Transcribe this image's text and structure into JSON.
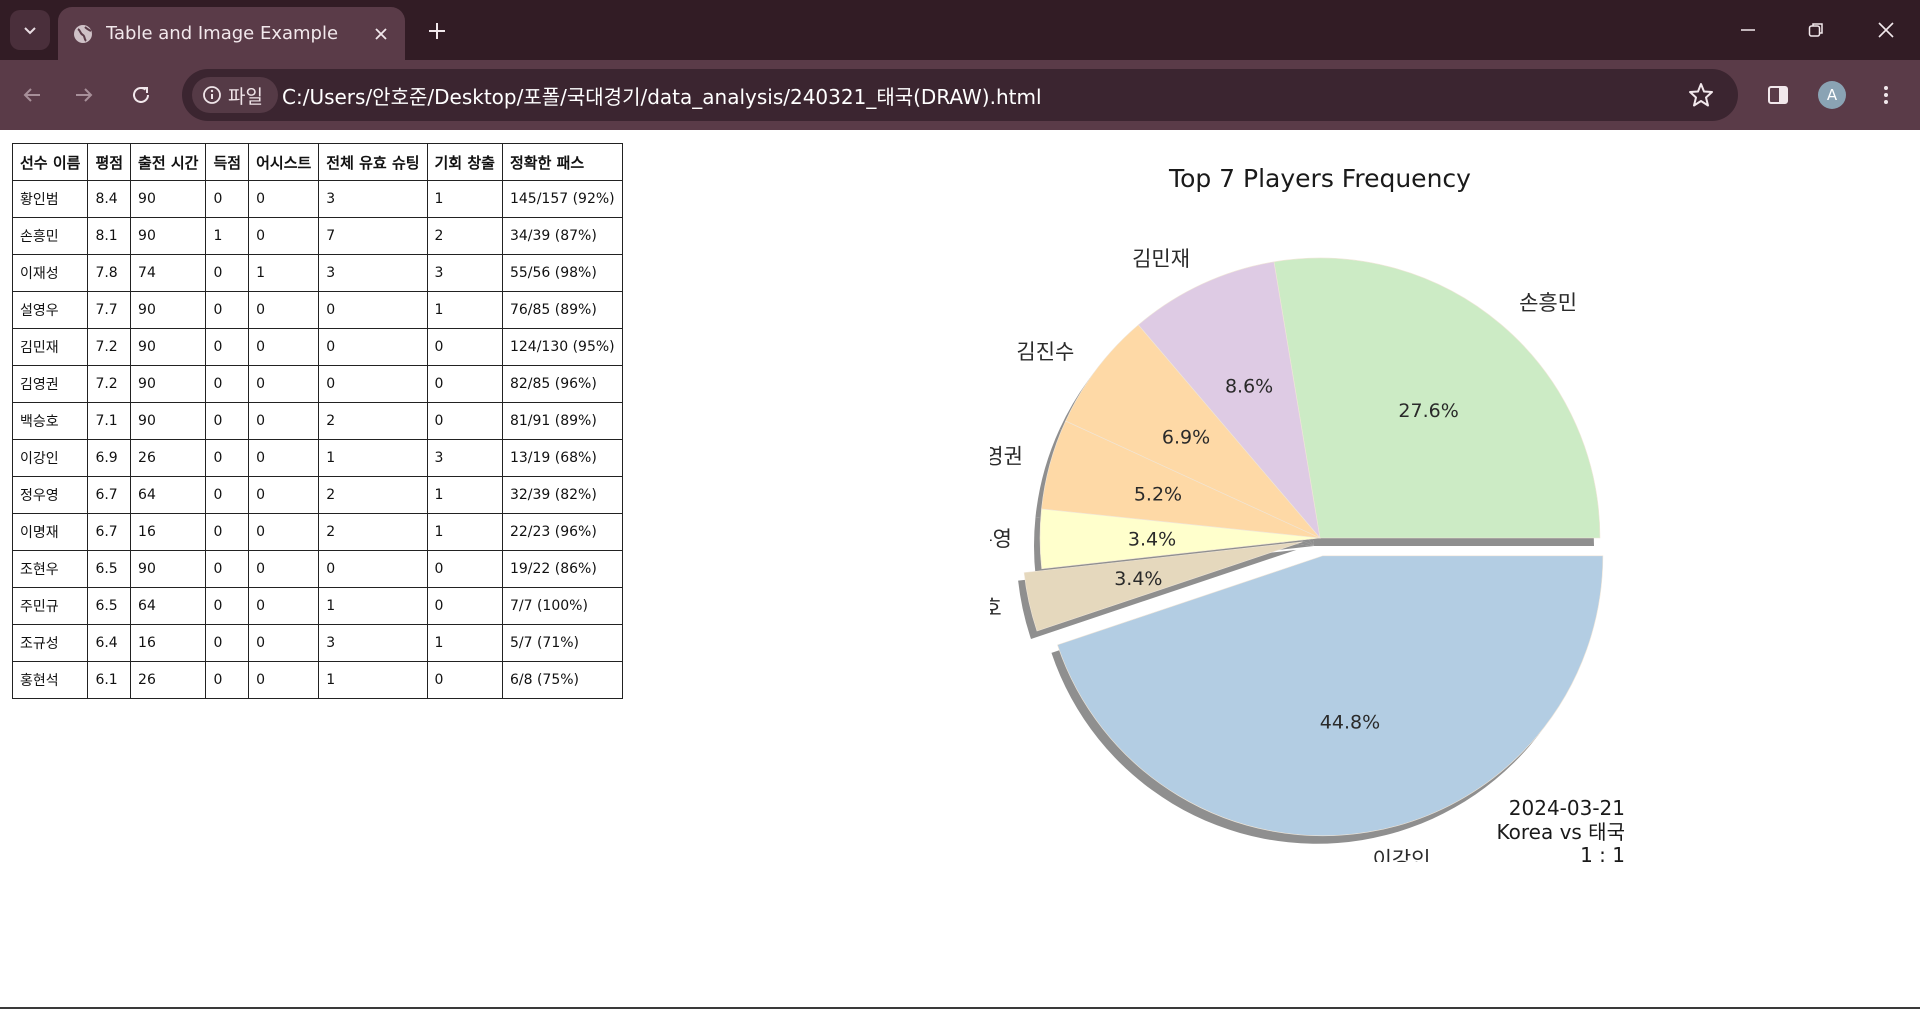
{
  "browser": {
    "tab_title": "Table and Image Example",
    "site_chip_label": "파일",
    "url": "C:/Users/안호준/Desktop/포폴/국대경기/data_analysis/240321_태국(DRAW).html",
    "profile_initial": "A"
  },
  "table": {
    "headers": [
      "선수 이름",
      "평점",
      "출전 시간",
      "득점",
      "어시스트",
      "전체 유효 슈팅",
      "기회 창출",
      "정확한 패스"
    ],
    "rows": [
      [
        "황인범",
        "8.4",
        "90",
        "0",
        "0",
        "3",
        "1",
        "145/157 (92%)"
      ],
      [
        "손흥민",
        "8.1",
        "90",
        "1",
        "0",
        "7",
        "2",
        "34/39 (87%)"
      ],
      [
        "이재성",
        "7.8",
        "74",
        "0",
        "1",
        "3",
        "3",
        "55/56 (98%)"
      ],
      [
        "설영우",
        "7.7",
        "90",
        "0",
        "0",
        "0",
        "1",
        "76/85 (89%)"
      ],
      [
        "김민재",
        "7.2",
        "90",
        "0",
        "0",
        "0",
        "0",
        "124/130 (95%)"
      ],
      [
        "김영권",
        "7.2",
        "90",
        "0",
        "0",
        "0",
        "0",
        "82/85 (96%)"
      ],
      [
        "백승호",
        "7.1",
        "90",
        "0",
        "0",
        "2",
        "0",
        "81/91 (89%)"
      ],
      [
        "이강인",
        "6.9",
        "26",
        "0",
        "0",
        "1",
        "3",
        "13/19 (68%)"
      ],
      [
        "정우영",
        "6.7",
        "64",
        "0",
        "0",
        "2",
        "1",
        "32/39 (82%)"
      ],
      [
        "이명재",
        "6.7",
        "16",
        "0",
        "0",
        "2",
        "1",
        "22/23 (96%)"
      ],
      [
        "조현우",
        "6.5",
        "90",
        "0",
        "0",
        "0",
        "0",
        "19/22 (86%)"
      ],
      [
        "주민규",
        "6.5",
        "64",
        "0",
        "0",
        "1",
        "0",
        "7/7 (100%)"
      ],
      [
        "조규성",
        "6.4",
        "16",
        "0",
        "0",
        "3",
        "1",
        "5/7 (71%)"
      ],
      [
        "홍현석",
        "6.1",
        "26",
        "0",
        "0",
        "1",
        "0",
        "6/8 (75%)"
      ]
    ]
  },
  "chart_data": {
    "type": "pie",
    "title": "Top 7 Players Frequency",
    "annotation": [
      "2024-03-21",
      "Korea vs 태국",
      "1 : 1"
    ],
    "slices": [
      {
        "label": "손흥민",
        "value": 27.6,
        "pct_label": "27.6%",
        "color": "#ccebc5",
        "explode": false
      },
      {
        "label": "김민재",
        "value": 8.6,
        "pct_label": "8.6%",
        "color": "#decbe4",
        "explode": false
      },
      {
        "label": "김진수",
        "value": 6.9,
        "pct_label": "6.9%",
        "color": "#fed9a6",
        "explode": false
      },
      {
        "label": "김영권",
        "value": 5.2,
        "pct_label": "5.2%",
        "color": "#fed9a6",
        "explode": false
      },
      {
        "label": "정우영",
        "value": 3.4,
        "pct_label": "3.4%",
        "color": "#ffffcc",
        "explode": false
      },
      {
        "label": "백승호",
        "value": 3.4,
        "pct_label": "3.4%",
        "color": "#e5d8bd",
        "explode": true
      },
      {
        "label": "이강인",
        "value": 44.8,
        "pct_label": "44.8%",
        "color": "#b3cde3",
        "explode": true
      }
    ],
    "legend": "none",
    "shadow": true
  }
}
